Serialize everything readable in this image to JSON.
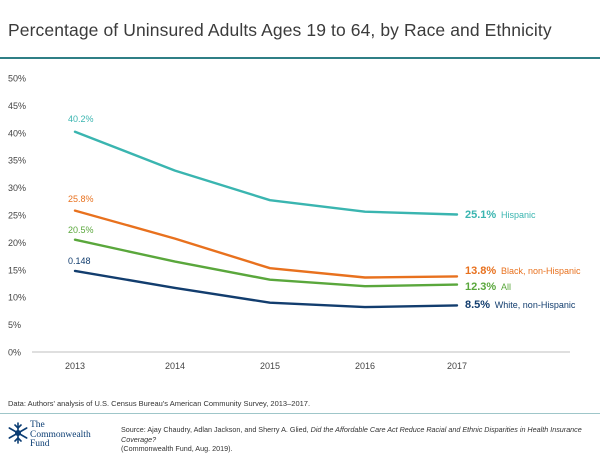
{
  "title": "Percentage of Uninsured Adults Ages 19 to 64, by Race and Ethnicity",
  "data_note": "Data: Authors' analysis of U.S. Census Bureau's American Community Survey, 2013–2017.",
  "source": {
    "prefix": "Source: Ajay Chaudry, Adlan Jackson, and Sherry A. Glied,",
    "italic": "Did the Affordable Care Act Reduce Racial and Ethnic Disparities in Health Insurance Coverage?",
    "suffix": "(Commonwealth Fund, Aug. 2019)."
  },
  "logo": {
    "line1": "The",
    "line2": "Commonwealth",
    "line3": "Fund",
    "icon": "snowflake-icon",
    "color": "#0b3d73"
  },
  "chart_data": {
    "type": "line",
    "x": [
      "2013",
      "2014",
      "2015",
      "2016",
      "2017"
    ],
    "ylim": [
      0,
      0.5
    ],
    "yticks": [
      0,
      0.05,
      0.1,
      0.15,
      0.2,
      0.25,
      0.3,
      0.35,
      0.4,
      0.45,
      0.5
    ],
    "ytick_labels": [
      "0%",
      "5%",
      "10%",
      "15%",
      "20%",
      "25%",
      "30%",
      "35%",
      "40%",
      "45%",
      "50%"
    ],
    "grid": false,
    "series": [
      {
        "name": "Hispanic",
        "color": "#3ab5b0",
        "values": [
          0.402,
          0.331,
          0.277,
          0.256,
          0.251
        ],
        "start_label": "40.2%",
        "end_value_label": "25.1%"
      },
      {
        "name": "Black, non-Hispanic",
        "color": "#e8711e",
        "values": [
          0.258,
          0.207,
          0.153,
          0.136,
          0.138
        ],
        "start_label": "25.8%",
        "end_value_label": "13.8%"
      },
      {
        "name": "All",
        "color": "#5aa73c",
        "values": [
          0.205,
          0.165,
          0.132,
          0.12,
          0.123
        ],
        "start_label": "20.5%",
        "end_value_label": "12.3%"
      },
      {
        "name": "White, non-Hispanic",
        "color": "#123d6e",
        "values": [
          0.148,
          0.117,
          0.09,
          0.082,
          0.085
        ],
        "start_label": "0.148",
        "end_value_label": "8.5%"
      }
    ]
  }
}
